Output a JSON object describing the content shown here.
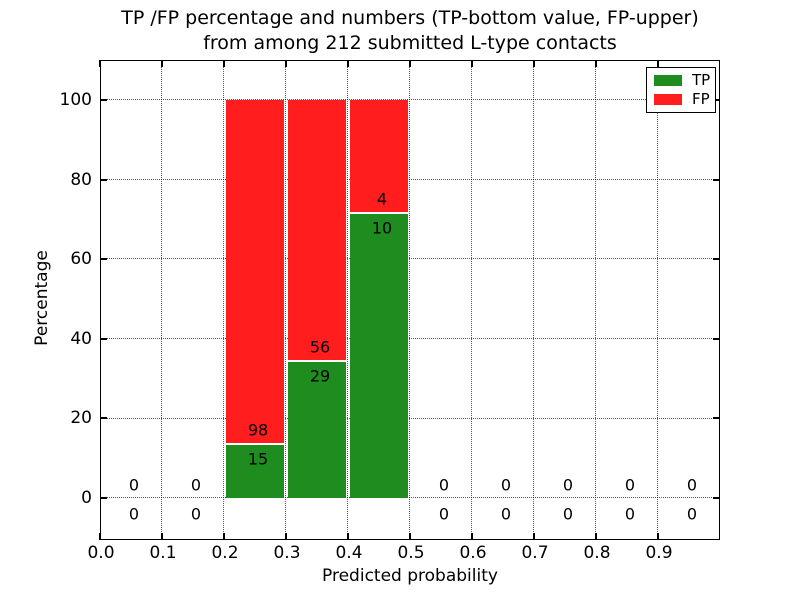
{
  "chart_data": {
    "type": "bar",
    "stacked": true,
    "title_lines": [
      "TP /FP percentage and numbers (TP-bottom value, FP-upper)",
      "from among 212 submitted L-type contacts"
    ],
    "xlabel": "Predicted probability",
    "ylabel": "Percentage",
    "total_contacts": 212,
    "xlim": [
      0,
      1.0
    ],
    "ylim": [
      -10.6,
      110.1
    ],
    "x_tick_values": [
      0.0,
      0.1,
      0.2,
      0.3,
      0.4,
      0.5,
      0.6,
      0.7,
      0.8,
      0.9
    ],
    "x_tick_labels": [
      "0.0",
      "0.1",
      "0.2",
      "0.3",
      "0.4",
      "0.5",
      "0.6",
      "0.7",
      "0.8",
      "0.9"
    ],
    "y_ticks": [
      0,
      20,
      40,
      60,
      80,
      100
    ],
    "grid": true,
    "bin_width": 0.1,
    "bins": [
      {
        "range": [
          0.0,
          0.1
        ],
        "tp": 0,
        "fp": 0
      },
      {
        "range": [
          0.1,
          0.2
        ],
        "tp": 0,
        "fp": 0
      },
      {
        "range": [
          0.2,
          0.3
        ],
        "tp": 15,
        "fp": 98
      },
      {
        "range": [
          0.3,
          0.4
        ],
        "tp": 29,
        "fp": 56
      },
      {
        "range": [
          0.4,
          0.5
        ],
        "tp": 10,
        "fp": 4
      },
      {
        "range": [
          0.5,
          0.6
        ],
        "tp": 0,
        "fp": 0
      },
      {
        "range": [
          0.6,
          0.7
        ],
        "tp": 0,
        "fp": 0
      },
      {
        "range": [
          0.7,
          0.8
        ],
        "tp": 0,
        "fp": 0
      },
      {
        "range": [
          0.8,
          0.9
        ],
        "tp": 0,
        "fp": 0
      },
      {
        "range": [
          0.9,
          1.0
        ],
        "tp": 0,
        "fp": 0
      }
    ],
    "colors": {
      "tp": "#1e8c1e",
      "fp": "#ff1d1d"
    },
    "legend": {
      "position": "upper-right",
      "items": [
        {
          "label": "TP",
          "color": "#1e8c1e"
        },
        {
          "label": "FP",
          "color": "#ff1d1d"
        }
      ]
    }
  }
}
